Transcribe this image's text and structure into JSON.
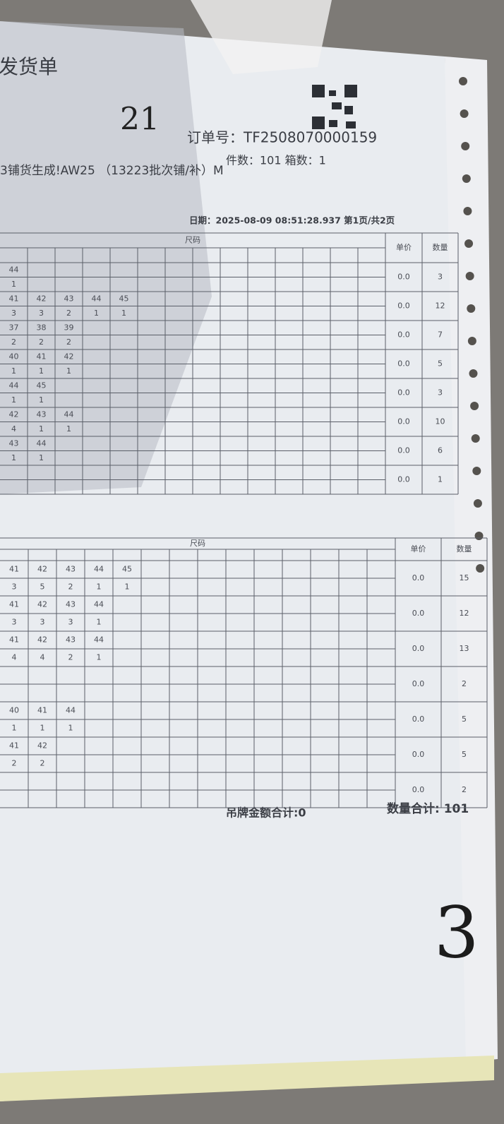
{
  "header": {
    "title": "发货单",
    "handwritten_mark": "21",
    "order_no": "订单号：TF2508070000159",
    "counts": "件数：101 箱数：1",
    "batch": "3铺货生成!AW25 （13223批次铺/补）M",
    "date": "日期：2025-08-09 08:51:28.937 第1页/共2页"
  },
  "tables": [
    {
      "size_header": "尺码",
      "price_header": "单价",
      "qty_header": "数量",
      "rows": [
        {
          "sizes": [
            44
          ],
          "counts": [
            1
          ],
          "price": "0.0",
          "qty": 3
        },
        {
          "sizes": [
            41,
            42,
            43,
            44,
            45
          ],
          "counts": [
            3,
            3,
            2,
            1,
            1
          ],
          "price": "0.0",
          "qty": 12
        },
        {
          "sizes": [
            37,
            38,
            39
          ],
          "counts": [
            2,
            2,
            2
          ],
          "price": "0.0",
          "qty": 7
        },
        {
          "sizes": [
            40,
            41,
            42
          ],
          "counts": [
            1,
            1,
            1
          ],
          "price": "0.0",
          "qty": 5
        },
        {
          "sizes": [
            44,
            45
          ],
          "counts": [
            1,
            1
          ],
          "price": "0.0",
          "qty": 3
        },
        {
          "sizes": [
            42,
            43,
            44
          ],
          "counts": [
            4,
            1,
            1
          ],
          "price": "0.0",
          "qty": 10
        },
        {
          "sizes": [
            43,
            44
          ],
          "counts": [
            1,
            1
          ],
          "price": "0.0",
          "qty": 6
        },
        {
          "sizes": [],
          "counts": [],
          "price": "0.0",
          "qty": 1
        }
      ]
    },
    {
      "size_header": "尺码",
      "price_header": "单价",
      "qty_header": "数量",
      "rows": [
        {
          "sizes": [
            41,
            42,
            43,
            44,
            45
          ],
          "counts": [
            3,
            5,
            2,
            1,
            1
          ],
          "price": "0.0",
          "qty": 15
        },
        {
          "sizes": [
            41,
            42,
            43,
            44
          ],
          "counts": [
            3,
            3,
            3,
            1
          ],
          "price": "0.0",
          "qty": 12
        },
        {
          "sizes": [
            41,
            42,
            43,
            44
          ],
          "counts": [
            4,
            4,
            2,
            1
          ],
          "price": "0.0",
          "qty": 13
        },
        {
          "sizes": [],
          "counts": [],
          "price": "0.0",
          "qty": 2
        },
        {
          "sizes": [
            40,
            41,
            44
          ],
          "counts": [
            1,
            1,
            1
          ],
          "price": "0.0",
          "qty": 5
        },
        {
          "sizes": [
            41,
            42
          ],
          "counts": [
            2,
            2
          ],
          "price": "0.0",
          "qty": 5
        },
        {
          "sizes": [],
          "counts": [],
          "price": "0.0",
          "qty": 2
        }
      ]
    }
  ],
  "footer": {
    "tag_total": "吊牌金额合计:0",
    "qty_total": "数量合计: 101",
    "handwritten_mark": "3"
  }
}
